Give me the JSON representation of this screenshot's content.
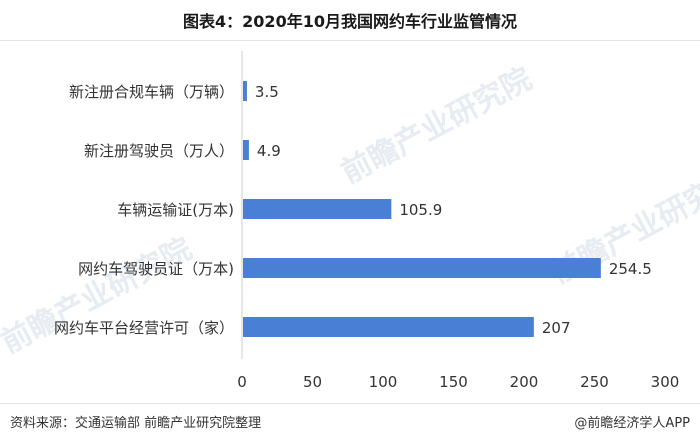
{
  "title": "图表4：2020年10月我国网约车行业监管情况",
  "footer": {
    "source": "资料来源：交通运输部 前瞻产业研究院整理",
    "brand": "@前瞻经济学人APP"
  },
  "watermark": "前瞻产业研究院",
  "colors": {
    "bar": "#4a7fd6",
    "axis": "#888888",
    "text": "#333333"
  },
  "chart_data": {
    "type": "bar",
    "orientation": "horizontal",
    "categories": [
      "新注册合规车辆（万辆）",
      "新注册驾驶员（万人）",
      "车辆运输证(万本)",
      "网约车驾驶员证（万本)",
      "网约车平台经营许可（家）"
    ],
    "values": [
      3.5,
      4.9,
      105.9,
      254.5,
      207
    ],
    "value_labels": [
      "3.5",
      "4.9",
      "105.9",
      "254.5",
      "207"
    ],
    "x_ticks": [
      0,
      50,
      100,
      150,
      200,
      250,
      300
    ],
    "xlim": [
      0,
      300
    ],
    "grid": false,
    "legend": "none"
  }
}
